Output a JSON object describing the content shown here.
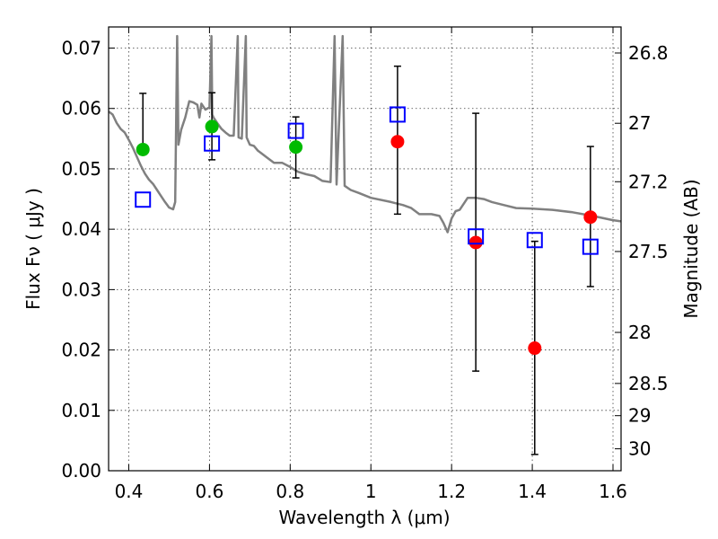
{
  "chart_data": {
    "type": "scatter",
    "xlabel": "Wavelength  λ (μm)",
    "ylabel": "Flux  Fν  ( μJy )",
    "y2label": "Magnitude (AB)",
    "xlim": [
      0.35,
      1.62
    ],
    "ylim": [
      0.0,
      0.0735
    ],
    "grid": true,
    "x_ticks": [
      0.4,
      0.6,
      0.8,
      1.0,
      1.2,
      1.4,
      1.6
    ],
    "x_tick_labels": [
      "0.4",
      "0.6",
      "0.8",
      "1",
      "1.2",
      "1.4",
      "1.6"
    ],
    "y_ticks": [
      0.0,
      0.01,
      0.02,
      0.03,
      0.04,
      0.05,
      0.06,
      0.07
    ],
    "y_tick_labels": [
      "0.00",
      "0.01",
      "0.02",
      "0.03",
      "0.04",
      "0.05",
      "0.06",
      "0.07"
    ],
    "mag_ticks": [
      26.8,
      27,
      27.2,
      27.5,
      28,
      28.5,
      29,
      30
    ],
    "mag_tick_labels": [
      "26.8",
      "27",
      "27.2",
      "27.5",
      "28",
      "28.5",
      "29",
      "30"
    ],
    "colors": {
      "green": "#00bb00",
      "red": "#ff0000",
      "blue_square": "#0000ff",
      "model": "#808080",
      "errorbar": "#000000"
    },
    "series": [
      {
        "marker": "green-circle",
        "color": "#00bb00",
        "points": [
          {
            "x": 0.435,
            "y": 0.0532,
            "yerr_low": 0.0534,
            "yerr_high": 0.0625
          },
          {
            "x": 0.606,
            "y": 0.057,
            "yerr_low": 0.0515,
            "yerr_high": 0.0626
          },
          {
            "x": 0.814,
            "y": 0.0536,
            "yerr_low": 0.0485,
            "yerr_high": 0.0586
          }
        ]
      },
      {
        "marker": "red-circle",
        "color": "#ff0000",
        "points": [
          {
            "x": 1.066,
            "y": 0.0545,
            "yerr_low": 0.0425,
            "yerr_high": 0.067
          },
          {
            "x": 1.26,
            "y": 0.0378,
            "yerr_low": 0.0165,
            "yerr_high": 0.0592
          },
          {
            "x": 1.406,
            "y": 0.0203,
            "yerr_low": 0.0027,
            "yerr_high": 0.038
          },
          {
            "x": 1.544,
            "y": 0.042,
            "yerr_low": 0.0305,
            "yerr_high": 0.0537
          }
        ]
      },
      {
        "marker": "blue-open-square",
        "color": "#0000ff",
        "points": [
          {
            "x": 0.435,
            "y": 0.0449
          },
          {
            "x": 0.606,
            "y": 0.0542
          },
          {
            "x": 0.814,
            "y": 0.0563
          },
          {
            "x": 1.066,
            "y": 0.059
          },
          {
            "x": 1.26,
            "y": 0.0388
          },
          {
            "x": 1.406,
            "y": 0.0382
          },
          {
            "x": 1.544,
            "y": 0.0371
          }
        ]
      }
    ],
    "model_spectrum": {
      "color": "#808080",
      "points": [
        [
          0.35,
          0.0595
        ],
        [
          0.36,
          0.059
        ],
        [
          0.37,
          0.0576
        ],
        [
          0.38,
          0.0566
        ],
        [
          0.39,
          0.056
        ],
        [
          0.4,
          0.0548
        ],
        [
          0.41,
          0.0535
        ],
        [
          0.42,
          0.052
        ],
        [
          0.43,
          0.0505
        ],
        [
          0.44,
          0.0492
        ],
        [
          0.45,
          0.0482
        ],
        [
          0.46,
          0.0475
        ],
        [
          0.47,
          0.0465
        ],
        [
          0.48,
          0.0455
        ],
        [
          0.49,
          0.0445
        ],
        [
          0.5,
          0.0436
        ],
        [
          0.51,
          0.0433
        ],
        [
          0.515,
          0.0445
        ],
        [
          0.52,
          0.072
        ],
        [
          0.523,
          0.054
        ],
        [
          0.53,
          0.0565
        ],
        [
          0.54,
          0.0585
        ],
        [
          0.55,
          0.0612
        ],
        [
          0.56,
          0.061
        ],
        [
          0.57,
          0.0606
        ],
        [
          0.575,
          0.0585
        ],
        [
          0.58,
          0.0608
        ],
        [
          0.59,
          0.0598
        ],
        [
          0.6,
          0.0602
        ],
        [
          0.605,
          0.072
        ],
        [
          0.607,
          0.059
        ],
        [
          0.61,
          0.0585
        ],
        [
          0.62,
          0.0575
        ],
        [
          0.63,
          0.0566
        ],
        [
          0.64,
          0.056
        ],
        [
          0.65,
          0.0555
        ],
        [
          0.66,
          0.0555
        ],
        [
          0.67,
          0.072
        ],
        [
          0.672,
          0.0552
        ],
        [
          0.68,
          0.055
        ],
        [
          0.69,
          0.072
        ],
        [
          0.692,
          0.0552
        ],
        [
          0.7,
          0.054
        ],
        [
          0.71,
          0.0538
        ],
        [
          0.72,
          0.053
        ],
        [
          0.73,
          0.0525
        ],
        [
          0.74,
          0.052
        ],
        [
          0.75,
          0.0515
        ],
        [
          0.76,
          0.051
        ],
        [
          0.78,
          0.051
        ],
        [
          0.8,
          0.0503
        ],
        [
          0.82,
          0.0495
        ],
        [
          0.84,
          0.0491
        ],
        [
          0.86,
          0.0488
        ],
        [
          0.88,
          0.048
        ],
        [
          0.9,
          0.0478
        ],
        [
          0.91,
          0.072
        ],
        [
          0.915,
          0.0474
        ],
        [
          0.93,
          0.072
        ],
        [
          0.935,
          0.0472
        ],
        [
          0.95,
          0.0465
        ],
        [
          0.97,
          0.046
        ],
        [
          1.0,
          0.0452
        ],
        [
          1.05,
          0.0445
        ],
        [
          1.08,
          0.044
        ],
        [
          1.1,
          0.0435
        ],
        [
          1.12,
          0.0425
        ],
        [
          1.15,
          0.0425
        ],
        [
          1.17,
          0.0422
        ],
        [
          1.18,
          0.041
        ],
        [
          1.19,
          0.0395
        ],
        [
          1.2,
          0.0418
        ],
        [
          1.21,
          0.043
        ],
        [
          1.22,
          0.0432
        ],
        [
          1.24,
          0.0452
        ],
        [
          1.26,
          0.0452
        ],
        [
          1.28,
          0.045
        ],
        [
          1.3,
          0.0445
        ],
        [
          1.33,
          0.044
        ],
        [
          1.36,
          0.0435
        ],
        [
          1.4,
          0.0434
        ],
        [
          1.45,
          0.0432
        ],
        [
          1.5,
          0.0428
        ],
        [
          1.55,
          0.0422
        ],
        [
          1.6,
          0.0415
        ],
        [
          1.62,
          0.0413
        ]
      ]
    }
  }
}
